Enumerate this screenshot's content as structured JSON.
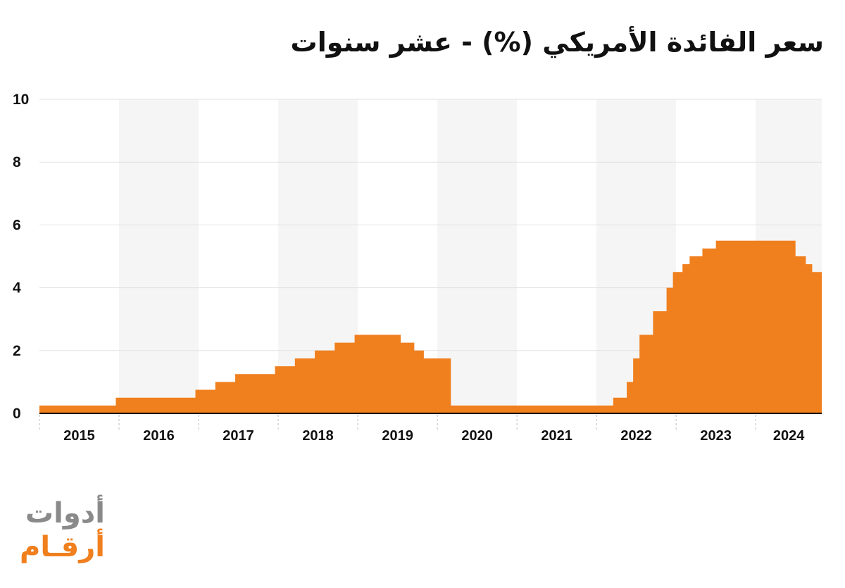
{
  "title": "سعر الفائدة الأمريكي (%) - عشر سنوات",
  "logo": {
    "line1": "أدوات",
    "line2": "أرقـام"
  },
  "colors": {
    "series": "#f07f1e",
    "band": "#f5f5f5",
    "grid": "#e2e2e2",
    "axis": "#000000"
  },
  "chart_data": {
    "type": "area",
    "step": true,
    "title": "سعر الفائدة الأمريكي (%) - عشر سنوات",
    "xlabel": "",
    "ylabel": "",
    "ylim": [
      0,
      10
    ],
    "yticks": [
      "0",
      "2",
      "4",
      "6",
      "8",
      "10"
    ],
    "xlim": [
      2015,
      2024.83
    ],
    "xticks": [
      "2015",
      "2016",
      "2017",
      "2018",
      "2019",
      "2020",
      "2021",
      "2022",
      "2023",
      "2024"
    ],
    "grid": true,
    "alternating_year_bands": true,
    "series": [
      {
        "points": [
          [
            2015.0,
            0.25
          ],
          [
            2015.96,
            0.5
          ],
          [
            2016.96,
            0.75
          ],
          [
            2017.21,
            1.0
          ],
          [
            2017.46,
            1.25
          ],
          [
            2017.96,
            1.5
          ],
          [
            2018.21,
            1.75
          ],
          [
            2018.46,
            2.0
          ],
          [
            2018.71,
            2.25
          ],
          [
            2018.96,
            2.5
          ],
          [
            2019.54,
            2.25
          ],
          [
            2019.71,
            2.0
          ],
          [
            2019.83,
            1.75
          ],
          [
            2020.17,
            0.25
          ],
          [
            2022.21,
            0.5
          ],
          [
            2022.38,
            1.0
          ],
          [
            2022.46,
            1.75
          ],
          [
            2022.54,
            2.5
          ],
          [
            2022.71,
            3.25
          ],
          [
            2022.88,
            4.0
          ],
          [
            2022.96,
            4.5
          ],
          [
            2023.08,
            4.75
          ],
          [
            2023.17,
            5.0
          ],
          [
            2023.33,
            5.25
          ],
          [
            2023.5,
            5.5
          ],
          [
            2024.5,
            5.0
          ],
          [
            2024.63,
            4.75
          ],
          [
            2024.71,
            4.5
          ],
          [
            2024.83,
            4.5
          ]
        ]
      }
    ]
  }
}
